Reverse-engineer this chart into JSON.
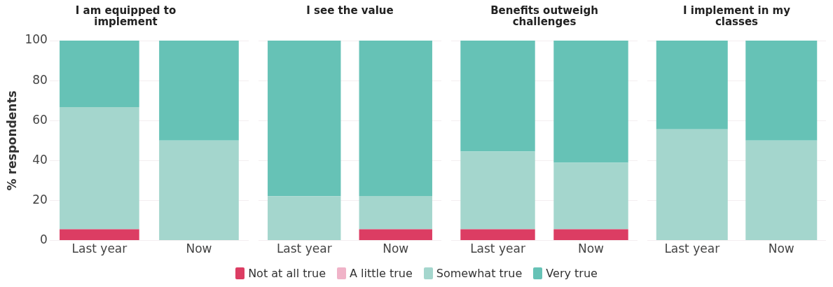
{
  "chart_data": [
    {
      "type": "bar",
      "title": "I am equipped to implement",
      "ylabel": "% respondents",
      "categories": [
        "Last year",
        "Now"
      ],
      "stacked": true,
      "ylim": [
        0,
        100
      ],
      "yticks": [
        0,
        20,
        40,
        60,
        80,
        100
      ],
      "grid": "y",
      "legend": "bottom",
      "series": [
        {
          "name": "Not at all true",
          "color": "#dc3d63",
          "values": [
            5.6,
            0
          ]
        },
        {
          "name": "A little true",
          "color": "#f0b3c8",
          "values": [
            0,
            0
          ]
        },
        {
          "name": "Somewhat true",
          "color": "#a4d6cd",
          "values": [
            61.1,
            50
          ]
        },
        {
          "name": "Very true",
          "color": "#66c2b6",
          "values": [
            33.3,
            50
          ]
        }
      ]
    },
    {
      "type": "bar",
      "title": "I see the value",
      "categories": [
        "Last year",
        "Now"
      ],
      "stacked": true,
      "ylim": [
        0,
        100
      ],
      "yticks": [
        0,
        20,
        40,
        60,
        80,
        100
      ],
      "grid": "y",
      "tick_labels": "x",
      "series": [
        {
          "color": "#dc3d63",
          "values": [
            0,
            5.6
          ]
        },
        {
          "color": "#f0b3c8",
          "values": [
            0,
            0
          ]
        },
        {
          "color": "#a4d6cd",
          "values": [
            22.2,
            16.7
          ]
        },
        {
          "color": "#66c2b6",
          "values": [
            77.8,
            77.7
          ]
        }
      ]
    },
    {
      "type": "bar",
      "title": "Benefits outweigh challenges",
      "categories": [
        "Last year",
        "Now"
      ],
      "stacked": true,
      "ylim": [
        0,
        100
      ],
      "yticks": [
        0,
        20,
        40,
        60,
        80,
        100
      ],
      "grid": "y",
      "tick_labels": "x",
      "series": [
        {
          "color": "#dc3d63",
          "values": [
            5.6,
            5.6
          ]
        },
        {
          "color": "#f0b3c8",
          "values": [
            0,
            0
          ]
        },
        {
          "color": "#a4d6cd",
          "values": [
            38.9,
            33.3
          ]
        },
        {
          "color": "#66c2b6",
          "values": [
            55.5,
            61.1
          ]
        }
      ]
    },
    {
      "type": "bar",
      "title": "I implement in my classes",
      "categories": [
        "Last year",
        "Now"
      ],
      "stacked": true,
      "ylim": [
        0,
        100
      ],
      "yticks": [
        0,
        20,
        40,
        60,
        80,
        100
      ],
      "grid": "y",
      "tick_labels": "x",
      "series": [
        {
          "color": "#dc3d63",
          "values": [
            0,
            0
          ]
        },
        {
          "color": "#f0b3c8",
          "values": [
            0,
            0
          ]
        },
        {
          "color": "#a4d6cd",
          "values": [
            55.6,
            50
          ]
        },
        {
          "color": "#66c2b6",
          "values": [
            44.4,
            50
          ]
        }
      ]
    }
  ]
}
